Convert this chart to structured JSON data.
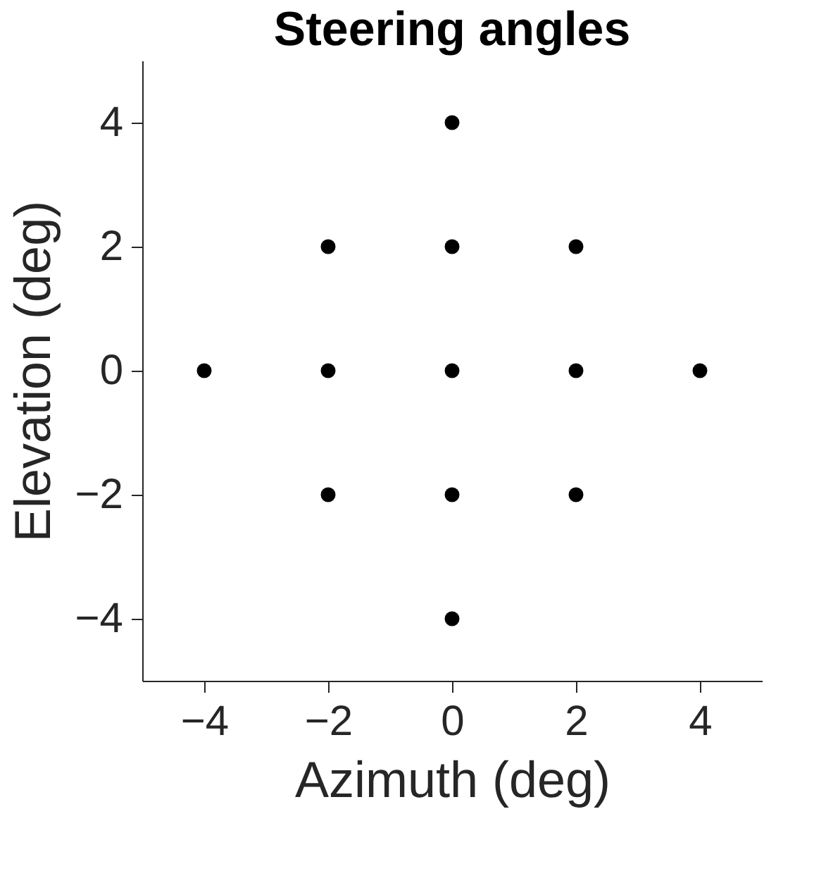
{
  "chart_data": {
    "type": "scatter",
    "title": "Steering angles",
    "xlabel": "Azimuth (deg)",
    "ylabel": "Elevation (deg)",
    "x": [
      0,
      -2,
      0,
      2,
      -4,
      -2,
      0,
      2,
      4,
      -2,
      0,
      2,
      0
    ],
    "series": [
      {
        "color": "#000000",
        "values": [
          4,
          2,
          2,
          2,
          0,
          0,
          0,
          0,
          0,
          -2,
          -2,
          -2,
          -4
        ]
      }
    ],
    "xlim": [
      -5,
      5
    ],
    "ylim": [
      -5,
      5
    ],
    "xticks": [
      -4,
      -2,
      0,
      2,
      4
    ],
    "yticks": [
      -4,
      -2,
      0,
      2,
      4
    ],
    "grid": false,
    "marker": "circle"
  }
}
